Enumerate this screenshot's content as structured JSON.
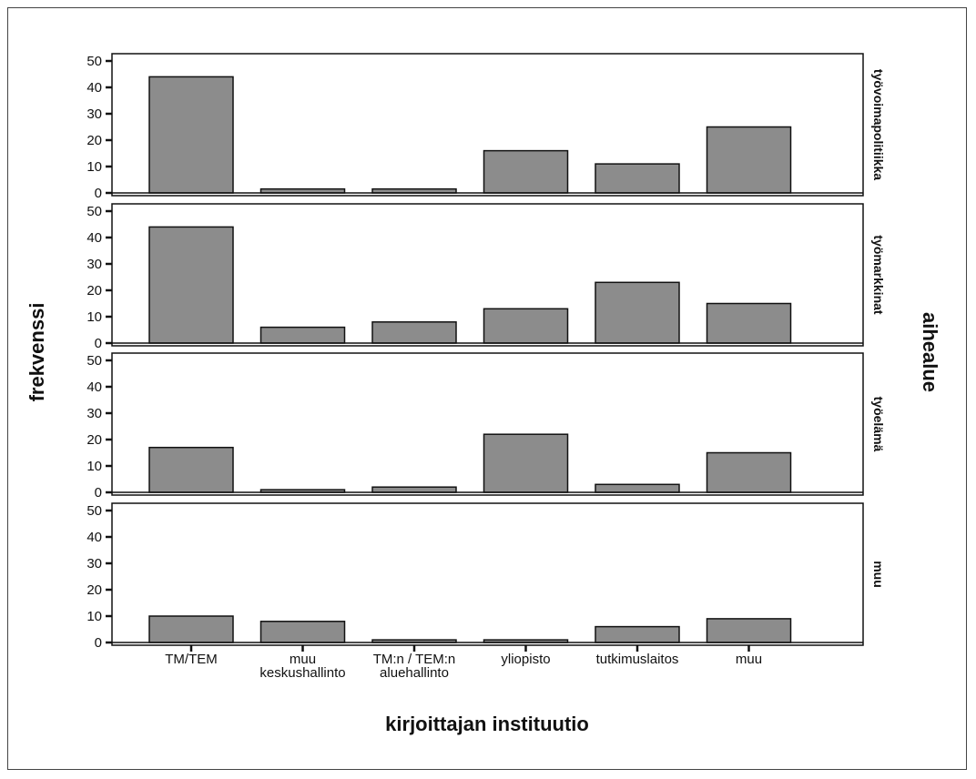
{
  "chart_data": {
    "type": "bar",
    "xlabel": "kirjoittajan instituutio",
    "ylabel": "frekvenssi",
    "facet_title": "aihealue",
    "categories": [
      [
        "TM/TEM"
      ],
      [
        "muu",
        "keskushallinto"
      ],
      [
        "TM:n / TEM:n",
        "aluehallinto"
      ],
      [
        "yliopisto"
      ],
      [
        "tutkimuslaitos"
      ],
      [
        "muu"
      ]
    ],
    "ylim": [
      0,
      50
    ],
    "yticks": [
      0,
      10,
      20,
      30,
      40,
      50
    ],
    "grid": false,
    "bar_color": "#8c8c8c",
    "panels": [
      {
        "name": "työvoimapolitiikka",
        "values": [
          44,
          1.5,
          1.5,
          16,
          11,
          25
        ]
      },
      {
        "name": "työmarkkinat",
        "values": [
          44,
          6,
          8,
          13,
          23,
          15
        ]
      },
      {
        "name": "työelämä",
        "values": [
          17,
          1,
          2,
          22,
          3,
          15
        ]
      },
      {
        "name": "muu",
        "values": [
          10,
          8,
          1,
          1,
          6,
          9
        ]
      }
    ]
  }
}
